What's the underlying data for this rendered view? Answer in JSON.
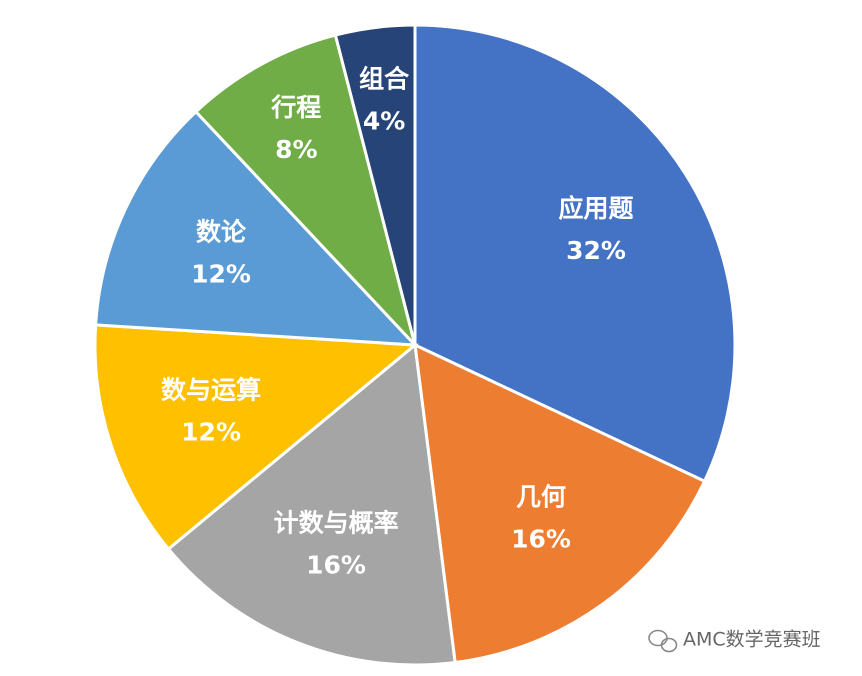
{
  "chart_data": {
    "type": "pie",
    "categories": [
      "应用题",
      "几何",
      "计数与概率",
      "数与运算",
      "数论",
      "行程",
      "组合"
    ],
    "values": [
      32,
      16,
      16,
      12,
      12,
      8,
      4
    ],
    "value_labels": [
      "32%",
      "16%",
      "16%",
      "12%",
      "12%",
      "8%",
      "4%"
    ],
    "colors": [
      "#4472c4",
      "#ed7d31",
      "#a5a5a5",
      "#ffc000",
      "#5b9bd5",
      "#70ad47",
      "#264478"
    ]
  },
  "watermark": "AMC数学竞赛班"
}
